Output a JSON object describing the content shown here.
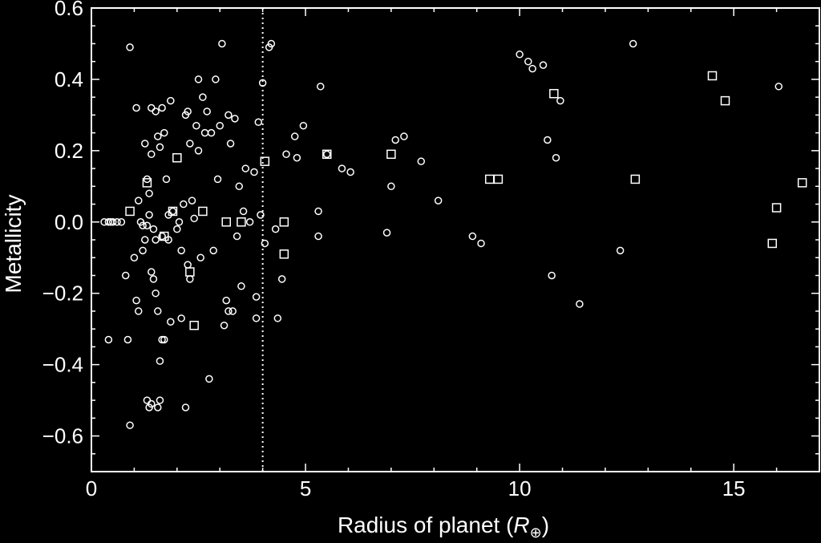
{
  "chart_data": {
    "type": "scatter",
    "xlabel": "Radius of planet (",
    "xlabel_symbol": "R",
    "xlabel_subscript": "⊕",
    "xlabel_close": ")",
    "ylabel": "Metallicity",
    "xlim": [
      0,
      17
    ],
    "ylim": [
      -0.7,
      0.6
    ],
    "x_ticks": [
      0,
      5,
      10,
      15
    ],
    "x_tick_labels": [
      "0",
      "5",
      "10",
      "15"
    ],
    "y_ticks": [
      -0.6,
      -0.4,
      -0.2,
      0.0,
      0.2,
      0.4,
      0.6
    ],
    "y_tick_labels": [
      "−0.6",
      "−0.4",
      "−0.2",
      "0.0",
      "0.2",
      "0.4",
      "0.6"
    ],
    "vertical_reference_line": {
      "x": 4.0,
      "style": "dotted"
    },
    "grid": false,
    "series": [
      {
        "marker": "circle",
        "points": [
          [
            0.3,
            0.0
          ],
          [
            0.4,
            0.0
          ],
          [
            0.45,
            0.0
          ],
          [
            0.5,
            0.0
          ],
          [
            0.6,
            0.0
          ],
          [
            0.7,
            0.0
          ],
          [
            0.4,
            -0.33
          ],
          [
            0.85,
            -0.33
          ],
          [
            0.9,
            0.49
          ],
          [
            0.8,
            -0.15
          ],
          [
            0.9,
            -0.57
          ],
          [
            1.0,
            -0.1
          ],
          [
            1.05,
            0.32
          ],
          [
            1.05,
            -0.22
          ],
          [
            1.1,
            -0.25
          ],
          [
            1.1,
            0.06
          ],
          [
            1.15,
            0.0
          ],
          [
            1.2,
            -0.01
          ],
          [
            1.25,
            -0.05
          ],
          [
            1.3,
            -0.01
          ],
          [
            1.35,
            0.02
          ],
          [
            1.2,
            -0.08
          ],
          [
            1.25,
            0.22
          ],
          [
            1.3,
            0.12
          ],
          [
            1.35,
            0.08
          ],
          [
            1.4,
            0.19
          ],
          [
            1.45,
            -0.02
          ],
          [
            1.5,
            -0.05
          ],
          [
            1.4,
            -0.14
          ],
          [
            1.45,
            -0.16
          ],
          [
            1.5,
            -0.2
          ],
          [
            1.55,
            -0.25
          ],
          [
            1.4,
            0.32
          ],
          [
            1.5,
            0.31
          ],
          [
            1.55,
            0.24
          ],
          [
            1.6,
            0.21
          ],
          [
            1.65,
            0.32
          ],
          [
            1.3,
            -0.5
          ],
          [
            1.35,
            -0.52
          ],
          [
            1.4,
            -0.51
          ],
          [
            1.55,
            -0.52
          ],
          [
            1.6,
            -0.5
          ],
          [
            1.65,
            -0.33
          ],
          [
            1.6,
            -0.39
          ],
          [
            1.7,
            -0.33
          ],
          [
            1.65,
            -0.04
          ],
          [
            1.7,
            0.25
          ],
          [
            1.75,
            0.12
          ],
          [
            1.8,
            0.02
          ],
          [
            1.85,
            -0.28
          ],
          [
            1.85,
            0.34
          ],
          [
            1.8,
            -0.05
          ],
          [
            1.9,
            0.03
          ],
          [
            2.0,
            -0.02
          ],
          [
            2.05,
            0.0
          ],
          [
            2.1,
            -0.08
          ],
          [
            2.15,
            0.05
          ],
          [
            2.2,
            0.3
          ],
          [
            2.25,
            0.31
          ],
          [
            2.3,
            0.22
          ],
          [
            2.1,
            -0.27
          ],
          [
            2.2,
            -0.52
          ],
          [
            2.25,
            -0.12
          ],
          [
            2.3,
            -0.16
          ],
          [
            2.35,
            0.06
          ],
          [
            2.4,
            0.01
          ],
          [
            2.45,
            0.27
          ],
          [
            2.5,
            0.4
          ],
          [
            2.55,
            -0.1
          ],
          [
            2.5,
            0.2
          ],
          [
            2.6,
            0.35
          ],
          [
            2.65,
            0.25
          ],
          [
            2.7,
            0.31
          ],
          [
            2.75,
            -0.44
          ],
          [
            2.8,
            0.25
          ],
          [
            2.85,
            -0.08
          ],
          [
            2.9,
            0.4
          ],
          [
            2.95,
            0.12
          ],
          [
            3.0,
            0.27
          ],
          [
            3.05,
            0.5
          ],
          [
            3.1,
            -0.29
          ],
          [
            3.15,
            -0.22
          ],
          [
            3.2,
            -0.25
          ],
          [
            3.2,
            0.3
          ],
          [
            3.25,
            0.22
          ],
          [
            3.3,
            -0.25
          ],
          [
            3.35,
            0.29
          ],
          [
            3.4,
            -0.04
          ],
          [
            3.45,
            0.1
          ],
          [
            3.5,
            -0.18
          ],
          [
            3.55,
            0.03
          ],
          [
            3.6,
            0.15
          ],
          [
            3.7,
            -0.0
          ],
          [
            3.8,
            0.14
          ],
          [
            3.85,
            -0.21
          ],
          [
            3.85,
            -0.27
          ],
          [
            3.9,
            0.28
          ],
          [
            3.95,
            0.02
          ],
          [
            4.0,
            0.39
          ],
          [
            4.05,
            -0.06
          ],
          [
            4.15,
            0.49
          ],
          [
            4.2,
            0.5
          ],
          [
            4.3,
            -0.02
          ],
          [
            4.35,
            -0.27
          ],
          [
            4.45,
            -0.16
          ],
          [
            4.55,
            0.19
          ],
          [
            4.75,
            0.24
          ],
          [
            4.8,
            0.18
          ],
          [
            4.95,
            0.27
          ],
          [
            5.3,
            0.03
          ],
          [
            5.3,
            -0.04
          ],
          [
            5.35,
            0.38
          ],
          [
            5.5,
            0.19
          ],
          [
            5.85,
            0.15
          ],
          [
            6.05,
            0.14
          ],
          [
            6.9,
            -0.03
          ],
          [
            7.0,
            0.1
          ],
          [
            7.1,
            0.23
          ],
          [
            7.3,
            0.24
          ],
          [
            7.7,
            0.17
          ],
          [
            8.1,
            0.06
          ],
          [
            8.9,
            -0.04
          ],
          [
            9.1,
            -0.06
          ],
          [
            10.0,
            0.47
          ],
          [
            10.2,
            0.45
          ],
          [
            10.3,
            0.43
          ],
          [
            10.55,
            0.44
          ],
          [
            10.65,
            0.23
          ],
          [
            10.75,
            -0.15
          ],
          [
            10.85,
            0.18
          ],
          [
            10.95,
            0.34
          ],
          [
            11.4,
            -0.23
          ],
          [
            12.35,
            -0.08
          ],
          [
            12.65,
            0.5
          ],
          [
            16.05,
            0.38
          ]
        ]
      },
      {
        "marker": "square",
        "points": [
          [
            0.9,
            0.03
          ],
          [
            1.3,
            0.11
          ],
          [
            1.7,
            -0.04
          ],
          [
            1.9,
            0.03
          ],
          [
            2.0,
            0.18
          ],
          [
            2.3,
            -0.14
          ],
          [
            2.4,
            -0.29
          ],
          [
            2.6,
            0.03
          ],
          [
            3.15,
            -0.0
          ],
          [
            3.5,
            -0.0
          ],
          [
            4.05,
            0.17
          ],
          [
            4.5,
            -0.0
          ],
          [
            4.5,
            -0.09
          ],
          [
            5.5,
            0.19
          ],
          [
            7.0,
            0.19
          ],
          [
            9.3,
            0.12
          ],
          [
            9.5,
            0.12
          ],
          [
            10.8,
            0.36
          ],
          [
            12.7,
            0.12
          ],
          [
            14.5,
            0.41
          ],
          [
            14.8,
            0.34
          ],
          [
            15.9,
            -0.06
          ],
          [
            16.0,
            0.04
          ],
          [
            16.6,
            0.11
          ]
        ]
      }
    ]
  }
}
